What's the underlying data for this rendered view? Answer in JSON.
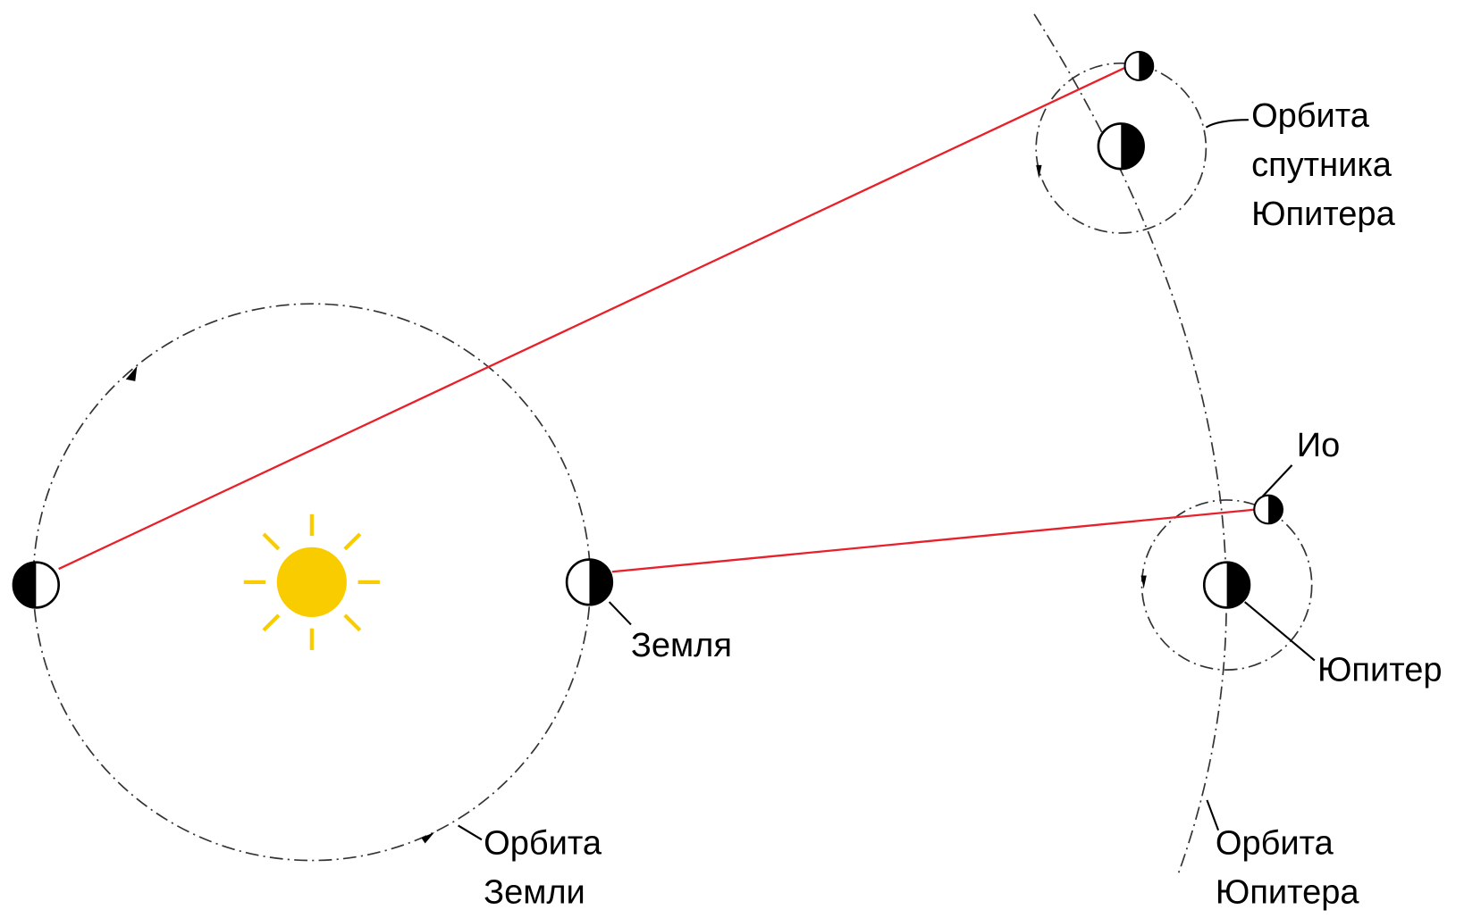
{
  "labels": {
    "satellite_orbit": [
      "Орбита",
      "спутника",
      "Юпитера"
    ],
    "io": "Ио",
    "earth": "Земля",
    "jupiter": "Юпитер",
    "earth_orbit": [
      "Орбита",
      "Земли"
    ],
    "jupiter_orbit": [
      "Орбита",
      "Юпитера"
    ]
  }
}
